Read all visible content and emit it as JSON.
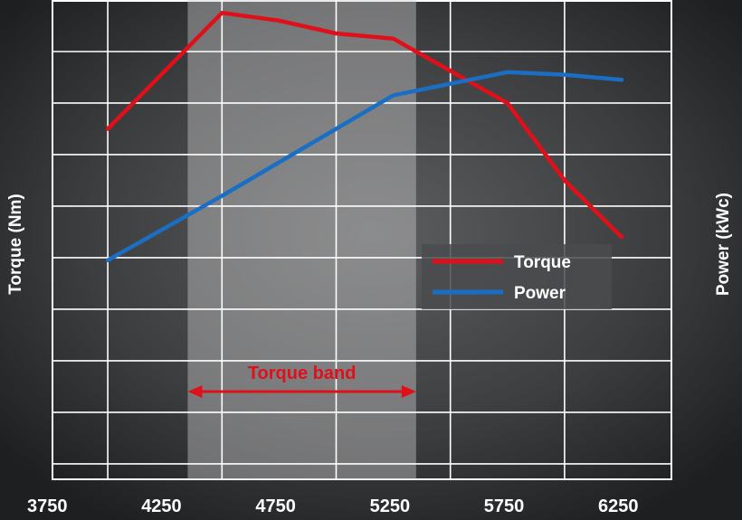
{
  "chart_data": {
    "type": "line",
    "x": [
      4000,
      4500,
      4750,
      5000,
      5250,
      5750,
      6000,
      6250
    ],
    "xlabel": "",
    "xticks": [
      3750,
      4250,
      4750,
      5250,
      5750,
      6250
    ],
    "ylabel_left": "Torque (Nm)",
    "ylabel_right": "Power (kWc)",
    "grid": true,
    "legend": {
      "placement": "center-right"
    },
    "series": [
      {
        "name": "Torque",
        "color": "#e0101a",
        "values": [
          6.5,
          8.75,
          8.6,
          8.35,
          8.25,
          7.0,
          5.5,
          4.4
        ]
      },
      {
        "name": "Power",
        "color": "#1a6fc4",
        "values": [
          3.95,
          5.2,
          5.85,
          6.5,
          7.15,
          7.6,
          7.55,
          7.45
        ]
      }
    ],
    "ylim": [
      -0.3,
      9.0
    ],
    "annotation": {
      "text": "Torque band",
      "range": [
        4350,
        5350
      ],
      "color": "#e0101a"
    }
  }
}
